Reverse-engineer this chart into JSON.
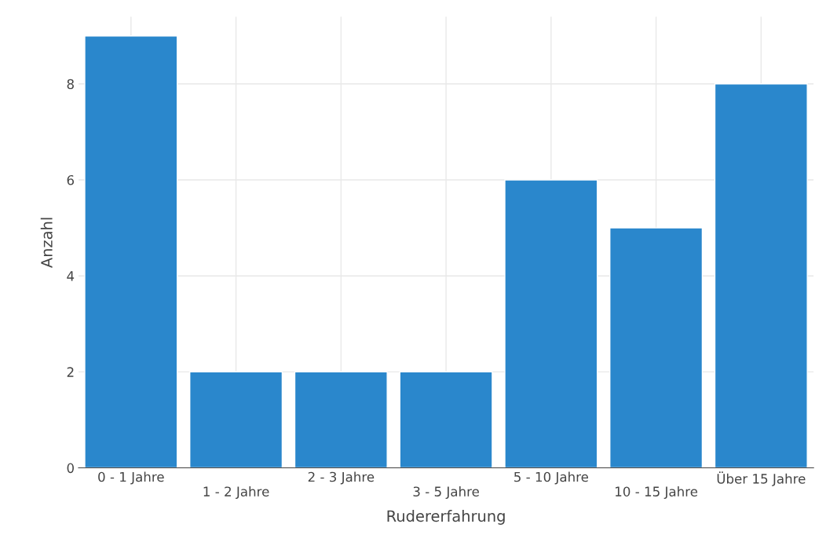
{
  "chart_data": {
    "type": "bar",
    "xlabel": "Rudererfahrung",
    "ylabel": "Anzahl",
    "categories": [
      "0 - 1 Jahre",
      "1 - 2 Jahre",
      "2 - 3 Jahre",
      "3 - 5 Jahre",
      "5 - 10 Jahre",
      "10 - 15 Jahre",
      "Über 15 Jahre"
    ],
    "values": [
      9,
      2,
      2,
      2,
      6,
      5,
      8
    ],
    "color": "#2a87cc",
    "ylim": [
      0,
      9.4
    ],
    "yticks": [
      0,
      2,
      4,
      6,
      8
    ],
    "grid": true
  }
}
